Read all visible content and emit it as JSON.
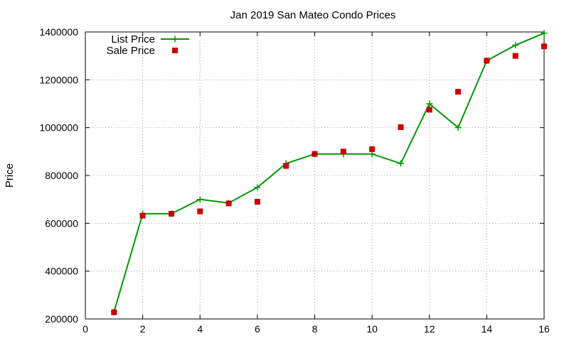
{
  "chart_data": {
    "type": "line",
    "title": "Jan 2019 San Mateo Condo Prices",
    "xlabel": "",
    "ylabel": "Price",
    "xlim": [
      0,
      16
    ],
    "ylim": [
      200000,
      1400000
    ],
    "xticks": [
      0,
      2,
      4,
      6,
      8,
      10,
      12,
      14,
      16
    ],
    "yticks": [
      200000,
      400000,
      600000,
      800000,
      1000000,
      1200000,
      1400000
    ],
    "grid": true,
    "legend_position": "top-left",
    "series": [
      {
        "name": "List Price",
        "style": "line-with-plus-markers",
        "color": "#009900",
        "x": [
          1,
          2,
          3,
          4,
          5,
          6,
          7,
          8,
          9,
          10,
          11,
          12,
          13,
          14,
          15,
          16
        ],
        "y": [
          230000,
          640000,
          640000,
          700000,
          685000,
          750000,
          850000,
          890000,
          890000,
          890000,
          850000,
          1100000,
          1000000,
          1280000,
          1345000,
          1395000
        ]
      },
      {
        "name": "Sale Price",
        "style": "square-markers",
        "color": "#cc0000",
        "x": [
          1,
          2,
          3,
          4,
          5,
          6,
          7,
          8,
          9,
          10,
          11,
          12,
          13,
          14,
          15,
          16
        ],
        "y": [
          228000,
          632000,
          640000,
          650000,
          683000,
          690000,
          840000,
          890000,
          900000,
          910000,
          1002000,
          1075000,
          1150000,
          1280000,
          1300000,
          1340000
        ]
      }
    ]
  }
}
